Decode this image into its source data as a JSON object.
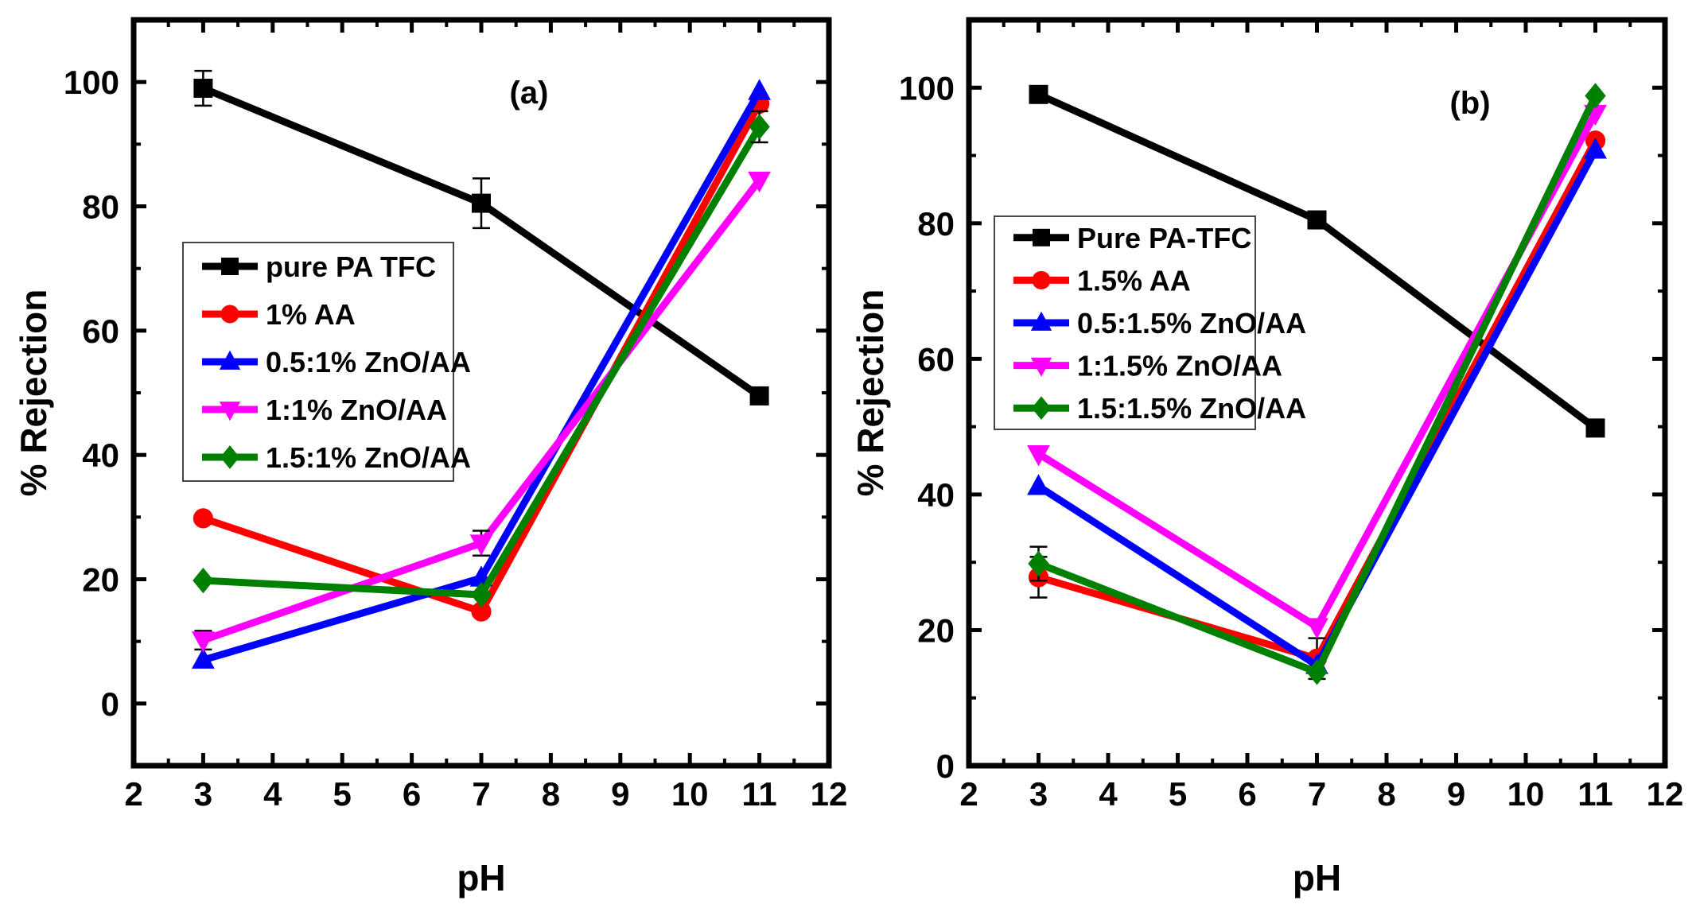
{
  "chart_data": [
    {
      "type": "line",
      "panel_label": "(a)",
      "xlabel": "pH",
      "ylabel": "% Rejection",
      "xlim": [
        2,
        12
      ],
      "ylim": [
        -10,
        110
      ],
      "xticks": [
        2,
        3,
        4,
        5,
        6,
        7,
        8,
        9,
        10,
        11,
        12
      ],
      "yticks": [
        0,
        20,
        40,
        60,
        80,
        100
      ],
      "legend_position": "middle-left",
      "x": [
        3,
        7,
        11
      ],
      "series": [
        {
          "name": "pure PA TFC",
          "color": "#000000",
          "marker": "square",
          "values": [
            99,
            80.5,
            49.5
          ],
          "errors": [
            2.8,
            4,
            0
          ]
        },
        {
          "name": "1% AA",
          "color": "#ff0000",
          "marker": "circle",
          "values": [
            29.8,
            14.8,
            96.5
          ],
          "errors": [
            0,
            0,
            0
          ]
        },
        {
          "name": "0.5:1% ZnO/AA",
          "color": "#0000ff",
          "marker": "triangle-up",
          "values": [
            7,
            20.2,
            98.5
          ],
          "errors": [
            0,
            0,
            0
          ]
        },
        {
          "name": "1:1% ZnO/AA",
          "color": "#ff00ff",
          "marker": "triangle-down",
          "values": [
            10.2,
            25.8,
            84.2
          ],
          "errors": [
            1.5,
            2,
            0
          ]
        },
        {
          "name": "1.5:1% ZnO/AA",
          "color": "#008000",
          "marker": "diamond",
          "values": [
            19.8,
            17.5,
            92.8
          ],
          "errors": [
            0,
            0,
            2.5
          ]
        }
      ]
    },
    {
      "type": "line",
      "panel_label": "(b)",
      "xlabel": "pH",
      "ylabel": "% Rejection",
      "xlim": [
        2,
        12
      ],
      "ylim": [
        0,
        110
      ],
      "xticks": [
        2,
        3,
        4,
        5,
        6,
        7,
        8,
        9,
        10,
        11,
        12
      ],
      "yticks": [
        0,
        20,
        40,
        60,
        80,
        100
      ],
      "legend_position": "upper-left",
      "x": [
        3,
        7,
        11
      ],
      "series": [
        {
          "name": "Pure PA-TFC",
          "color": "#000000",
          "marker": "square",
          "values": [
            99,
            80.5,
            49.8
          ],
          "errors": [
            0,
            0,
            0
          ]
        },
        {
          "name": "1.5% AA",
          "color": "#ff0000",
          "marker": "circle",
          "values": [
            27.8,
            15.8,
            92.2
          ],
          "errors": [
            3,
            3,
            0
          ]
        },
        {
          "name": "0.5:1.5% ZnO/AA",
          "color": "#0000ff",
          "marker": "triangle-up",
          "values": [
            41.2,
            14.8,
            90.8
          ],
          "errors": [
            0,
            0,
            0
          ]
        },
        {
          "name": "1:1.5% ZnO/AA",
          "color": "#ff00ff",
          "marker": "triangle-down",
          "values": [
            46,
            20.5,
            96.2
          ],
          "errors": [
            0,
            0,
            0
          ]
        },
        {
          "name": "1.5:1.5% ZnO/AA",
          "color": "#008000",
          "marker": "diamond",
          "values": [
            29.8,
            13.8,
            98.8
          ],
          "errors": [
            2.5,
            0,
            0
          ]
        }
      ]
    }
  ]
}
